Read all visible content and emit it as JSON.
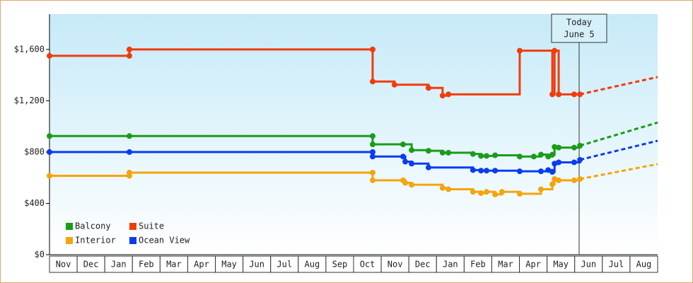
{
  "chart_data": {
    "type": "line",
    "step": true,
    "grid": false,
    "legend": "lower left",
    "categories": [
      "Nov",
      "Dec",
      "Jan",
      "Feb",
      "Mar",
      "Apr",
      "May",
      "Jun",
      "Jul",
      "Aug",
      "Sep",
      "Oct",
      "Nov",
      "Dec",
      "Jan",
      "Feb",
      "Mar",
      "Apr",
      "May",
      "Jun",
      "Jul",
      "Aug"
    ],
    "xlim": [
      0,
      22
    ],
    "ylim": [
      0,
      1875
    ],
    "yticks": [
      {
        "value": 0,
        "label": "$0"
      },
      {
        "value": 400,
        "label": "$400"
      },
      {
        "value": 800,
        "label": "$800"
      },
      {
        "value": 1200,
        "label": "$1,200"
      },
      {
        "value": 1600,
        "label": "$1,600"
      }
    ],
    "annotation": {
      "x": 19.16,
      "lines": [
        "Today",
        "June 5"
      ]
    },
    "series": [
      {
        "name": "Balcony",
        "color": "#1a9c1a",
        "x": [
          0,
          2.89,
          11.69,
          11.69,
          12.79,
          13.1,
          13.71,
          14.22,
          14.43,
          15.32,
          15.61,
          15.81,
          16.12,
          17.01,
          17.52,
          17.78,
          18.04,
          18.19,
          18.27,
          18.42,
          18.98,
          19.19
        ],
        "values": [
          925,
          925,
          925,
          860,
          860,
          815,
          810,
          795,
          795,
          785,
          770,
          770,
          775,
          765,
          765,
          780,
          765,
          780,
          840,
          835,
          835,
          850
        ],
        "projection": {
          "x": [
            19.19,
            22
          ],
          "values": [
            850,
            1030
          ]
        }
      },
      {
        "name": "Suite",
        "color": "#f03c0c",
        "x": [
          0,
          2.89,
          2.89,
          11.69,
          11.69,
          12.48,
          13.71,
          14.22,
          14.43,
          17.01,
          18.19,
          18.27,
          18.42,
          18.98,
          19.19
        ],
        "values": [
          1550,
          1550,
          1600,
          1600,
          1350,
          1325,
          1300,
          1240,
          1250,
          1590,
          1250,
          1590,
          1250,
          1250,
          1250
        ],
        "projection": {
          "x": [
            19.19,
            22
          ],
          "values": [
            1250,
            1385
          ]
        }
      },
      {
        "name": "Interior",
        "color": "#f5a40c",
        "x": [
          0,
          2.89,
          2.89,
          11.69,
          11.69,
          12.79,
          12.87,
          13.1,
          14.22,
          14.43,
          15.32,
          15.61,
          15.81,
          16.12,
          16.37,
          17.01,
          17.78,
          18.19,
          18.27,
          18.42,
          18.98,
          19.19
        ],
        "values": [
          615,
          615,
          640,
          640,
          580,
          580,
          560,
          545,
          520,
          510,
          490,
          480,
          490,
          470,
          490,
          475,
          510,
          550,
          590,
          580,
          580,
          590
        ],
        "projection": {
          "x": [
            19.19,
            22
          ],
          "values": [
            590,
            706
          ]
        }
      },
      {
        "name": "Ocean View",
        "color": "#0b3cf0",
        "x": [
          0,
          2.89,
          11.69,
          11.69,
          12.79,
          12.87,
          13.1,
          13.71,
          15.32,
          15.61,
          15.81,
          16.12,
          17.01,
          17.78,
          18.04,
          18.19,
          18.27,
          18.42,
          18.98,
          19.19
        ],
        "values": [
          800,
          800,
          800,
          765,
          765,
          725,
          710,
          680,
          660,
          655,
          655,
          655,
          650,
          650,
          660,
          645,
          710,
          720,
          720,
          740
        ],
        "projection": {
          "x": [
            19.19,
            22
          ],
          "values": [
            740,
            888
          ]
        }
      }
    ]
  }
}
